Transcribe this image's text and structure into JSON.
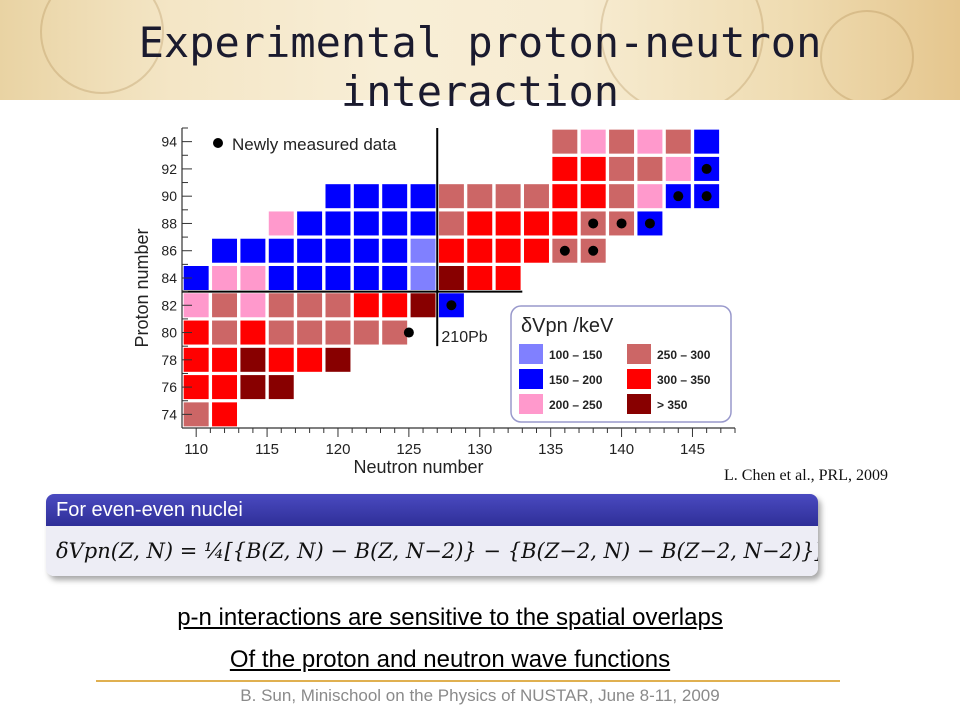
{
  "slide": {
    "title": "Experimental proton-neutron interaction",
    "citation": "L. Chen et al., PRL, 2009",
    "formula_header": "For even-even nuclei",
    "formula": "δVpn(Z, N) = ¼[{B(Z, N) − B(Z, N−2)} − {B(Z−2, N) − B(Z−2, N−2)}]",
    "statement_line1": "p-n interactions are sensitive to the spatial overlaps ",
    "statement_line2": "Of the proton and neutron wave functions",
    "footer": "B. Sun, Minischool on the Physics of NUSTAR, June 8-11, 2009"
  },
  "chart_data": {
    "type": "heatmap",
    "xlabel": "Neutron number",
    "ylabel": "Proton number",
    "x_ticks": [
      110,
      115,
      120,
      125,
      130,
      135,
      140,
      145
    ],
    "y_ticks": [
      74,
      76,
      78,
      80,
      82,
      84,
      86,
      88,
      90,
      92,
      94
    ],
    "xlim": [
      109,
      148
    ],
    "ylim": [
      73,
      95
    ],
    "legend_title": "δVpn /keV",
    "legend_note": "Newly measured data",
    "annotation": "210Pb",
    "bins": [
      {
        "key": "a",
        "label": "100 – 150",
        "color": "#8080ff"
      },
      {
        "key": "b",
        "label": "150 – 200",
        "color": "#0000ff"
      },
      {
        "key": "c",
        "label": "200 – 250",
        "color": "#ff99cc"
      },
      {
        "key": "d",
        "label": "250 – 300",
        "color": "#cc6666"
      },
      {
        "key": "e",
        "label": "300 – 350",
        "color": "#ff0000"
      },
      {
        "key": "f",
        "label": "> 350",
        "color": "#880000"
      }
    ],
    "rows": [
      {
        "z": 94,
        "cells": [
          [
            136,
            "d"
          ],
          [
            138,
            "c"
          ],
          [
            140,
            "d"
          ],
          [
            142,
            "c"
          ],
          [
            144,
            "d"
          ],
          [
            146,
            "b"
          ]
        ]
      },
      {
        "z": 92,
        "cells": [
          [
            136,
            "e"
          ],
          [
            138,
            "e"
          ],
          [
            140,
            "d"
          ],
          [
            142,
            "d"
          ],
          [
            144,
            "c"
          ],
          [
            146,
            "b"
          ]
        ]
      },
      {
        "z": 90,
        "cells": [
          [
            120,
            "b"
          ],
          [
            122,
            "b"
          ],
          [
            124,
            "b"
          ],
          [
            126,
            "b"
          ],
          [
            128,
            "d"
          ],
          [
            130,
            "d"
          ],
          [
            132,
            "d"
          ],
          [
            134,
            "d"
          ],
          [
            136,
            "e"
          ],
          [
            138,
            "e"
          ],
          [
            140,
            "d"
          ],
          [
            142,
            "c"
          ],
          [
            144,
            "b"
          ],
          [
            146,
            "b"
          ]
        ]
      },
      {
        "z": 88,
        "cells": [
          [
            116,
            "c"
          ],
          [
            118,
            "b"
          ],
          [
            120,
            "b"
          ],
          [
            122,
            "b"
          ],
          [
            124,
            "b"
          ],
          [
            126,
            "b"
          ],
          [
            128,
            "d"
          ],
          [
            130,
            "e"
          ],
          [
            132,
            "e"
          ],
          [
            134,
            "e"
          ],
          [
            136,
            "e"
          ],
          [
            138,
            "d"
          ],
          [
            140,
            "d"
          ],
          [
            142,
            "b"
          ]
        ]
      },
      {
        "z": 86,
        "cells": [
          [
            112,
            "b"
          ],
          [
            114,
            "b"
          ],
          [
            116,
            "b"
          ],
          [
            118,
            "b"
          ],
          [
            120,
            "b"
          ],
          [
            122,
            "b"
          ],
          [
            124,
            "b"
          ],
          [
            126,
            "a"
          ],
          [
            128,
            "e"
          ],
          [
            130,
            "e"
          ],
          [
            132,
            "e"
          ],
          [
            134,
            "e"
          ],
          [
            136,
            "d"
          ],
          [
            138,
            "d"
          ]
        ]
      },
      {
        "z": 84,
        "cells": [
          [
            110,
            "b"
          ],
          [
            112,
            "c"
          ],
          [
            114,
            "c"
          ],
          [
            116,
            "b"
          ],
          [
            118,
            "b"
          ],
          [
            120,
            "b"
          ],
          [
            122,
            "b"
          ],
          [
            124,
            "b"
          ],
          [
            126,
            "a"
          ],
          [
            128,
            "f"
          ],
          [
            130,
            "e"
          ],
          [
            132,
            "e"
          ]
        ]
      },
      {
        "z": 82,
        "cells": [
          [
            110,
            "c"
          ],
          [
            112,
            "d"
          ],
          [
            114,
            "c"
          ],
          [
            116,
            "d"
          ],
          [
            118,
            "d"
          ],
          [
            120,
            "d"
          ],
          [
            122,
            "e"
          ],
          [
            124,
            "e"
          ],
          [
            126,
            "f"
          ],
          [
            128,
            "b"
          ]
        ]
      },
      {
        "z": 80,
        "cells": [
          [
            110,
            "e"
          ],
          [
            112,
            "d"
          ],
          [
            114,
            "e"
          ],
          [
            116,
            "d"
          ],
          [
            118,
            "d"
          ],
          [
            120,
            "d"
          ],
          [
            122,
            "d"
          ],
          [
            124,
            "d"
          ]
        ]
      },
      {
        "z": 78,
        "cells": [
          [
            110,
            "e"
          ],
          [
            112,
            "e"
          ],
          [
            114,
            "f"
          ],
          [
            116,
            "e"
          ],
          [
            118,
            "e"
          ],
          [
            120,
            "f"
          ]
        ]
      },
      {
        "z": 76,
        "cells": [
          [
            110,
            "e"
          ],
          [
            112,
            "e"
          ],
          [
            114,
            "f"
          ],
          [
            116,
            "f"
          ]
        ]
      },
      {
        "z": 74,
        "cells": [
          [
            110,
            "d"
          ],
          [
            112,
            "e"
          ]
        ]
      }
    ],
    "new_points": [
      [
        146,
        92
      ],
      [
        144,
        90
      ],
      [
        146,
        90
      ],
      [
        138,
        88
      ],
      [
        140,
        88
      ],
      [
        142,
        88
      ],
      [
        136,
        86
      ],
      [
        138,
        86
      ],
      [
        128,
        82
      ],
      [
        125,
        80
      ]
    ],
    "colors": {
      "dashed_box": "#9999cc",
      "axis": "#333333"
    }
  }
}
